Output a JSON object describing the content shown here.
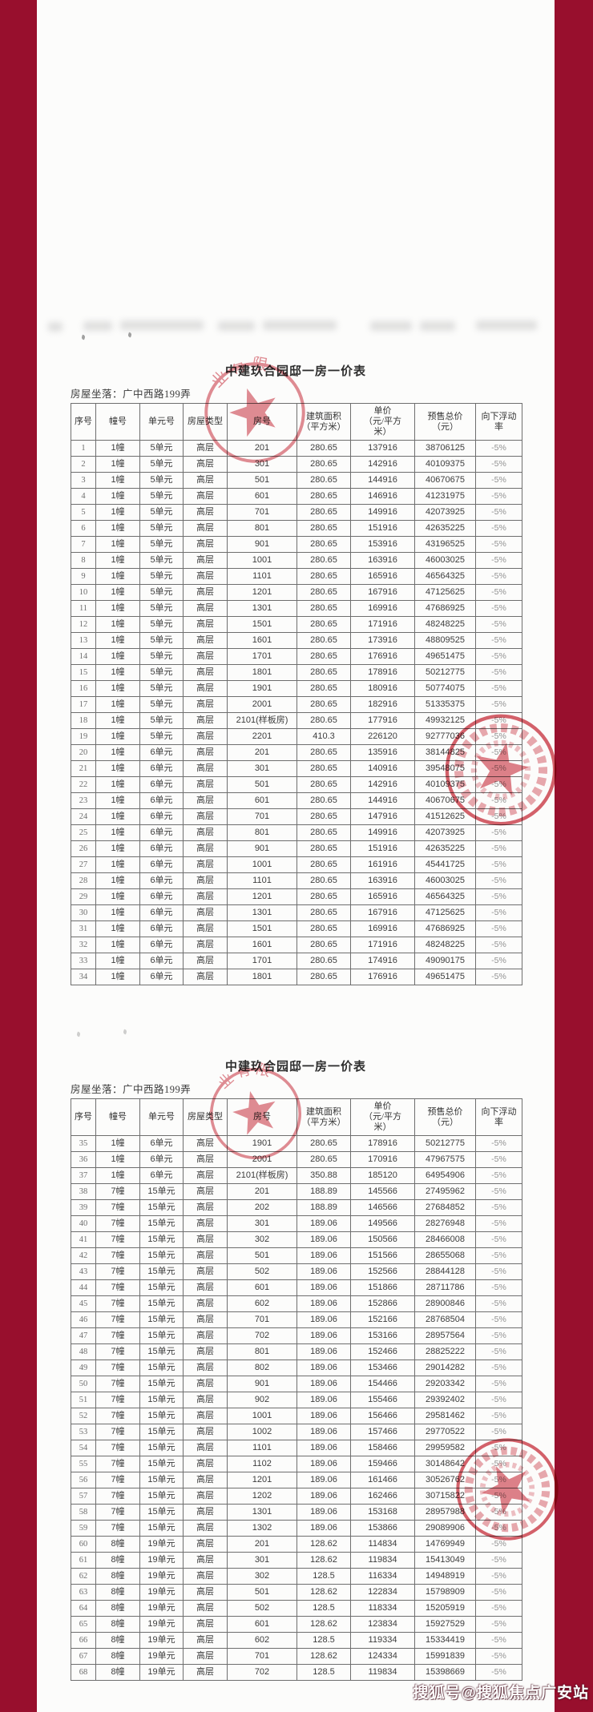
{
  "page": {
    "watermark": "搜狐号@搜狐焦点广安站",
    "colors": {
      "background": "#980f2d",
      "paper": "#fcfcfb",
      "seal_red": "#cf4652"
    }
  },
  "seal": {
    "arc_text": "业有限"
  },
  "table_headers": [
    "序号",
    "幢号",
    "单元号",
    "房屋类型",
    "房号",
    "建筑面积\n（平方米）",
    "单价\n（元/平方\n米）",
    "预售总价\n（元）",
    "向下浮动\n率"
  ],
  "tables": [
    {
      "title": "中建玖合园邸一房一价表",
      "location": "房屋坐落：广中西路199弄",
      "rows": [
        [
          "1",
          "1幢",
          "5单元",
          "高层",
          "201",
          "280.65",
          "137916",
          "38706125",
          "-5%"
        ],
        [
          "2",
          "1幢",
          "5单元",
          "高层",
          "301",
          "280.65",
          "142916",
          "40109375",
          "-5%"
        ],
        [
          "3",
          "1幢",
          "5单元",
          "高层",
          "501",
          "280.65",
          "144916",
          "40670675",
          "-5%"
        ],
        [
          "4",
          "1幢",
          "5单元",
          "高层",
          "601",
          "280.65",
          "146916",
          "41231975",
          "-5%"
        ],
        [
          "5",
          "1幢",
          "5单元",
          "高层",
          "701",
          "280.65",
          "149916",
          "42073925",
          "-5%"
        ],
        [
          "6",
          "1幢",
          "5单元",
          "高层",
          "801",
          "280.65",
          "151916",
          "42635225",
          "-5%"
        ],
        [
          "7",
          "1幢",
          "5单元",
          "高层",
          "901",
          "280.65",
          "153916",
          "43196525",
          "-5%"
        ],
        [
          "8",
          "1幢",
          "5单元",
          "高层",
          "1001",
          "280.65",
          "163916",
          "46003025",
          "-5%"
        ],
        [
          "9",
          "1幢",
          "5单元",
          "高层",
          "1101",
          "280.65",
          "165916",
          "46564325",
          "-5%"
        ],
        [
          "10",
          "1幢",
          "5单元",
          "高层",
          "1201",
          "280.65",
          "167916",
          "47125625",
          "-5%"
        ],
        [
          "11",
          "1幢",
          "5单元",
          "高层",
          "1301",
          "280.65",
          "169916",
          "47686925",
          "-5%"
        ],
        [
          "12",
          "1幢",
          "5单元",
          "高层",
          "1501",
          "280.65",
          "171916",
          "48248225",
          "-5%"
        ],
        [
          "13",
          "1幢",
          "5单元",
          "高层",
          "1601",
          "280.65",
          "173916",
          "48809525",
          "-5%"
        ],
        [
          "14",
          "1幢",
          "5单元",
          "高层",
          "1701",
          "280.65",
          "176916",
          "49651475",
          "-5%"
        ],
        [
          "15",
          "1幢",
          "5单元",
          "高层",
          "1801",
          "280.65",
          "178916",
          "50212775",
          "-5%"
        ],
        [
          "16",
          "1幢",
          "5单元",
          "高层",
          "1901",
          "280.65",
          "180916",
          "50774075",
          "-5%"
        ],
        [
          "17",
          "1幢",
          "5单元",
          "高层",
          "2001",
          "280.65",
          "182916",
          "51335375",
          "-5%"
        ],
        [
          "18",
          "1幢",
          "5单元",
          "高层",
          "2101(样板房)",
          "280.65",
          "177916",
          "49932125",
          "-5%"
        ],
        [
          "19",
          "1幢",
          "5单元",
          "高层",
          "2201",
          "410.3",
          "226120",
          "92777036",
          "-5%"
        ],
        [
          "20",
          "1幢",
          "6单元",
          "高层",
          "201",
          "280.65",
          "135916",
          "38144825",
          "-5%"
        ],
        [
          "21",
          "1幢",
          "6单元",
          "高层",
          "301",
          "280.65",
          "140916",
          "39548075",
          "-5%"
        ],
        [
          "22",
          "1幢",
          "6单元",
          "高层",
          "501",
          "280.65",
          "142916",
          "40109375",
          "-5%"
        ],
        [
          "23",
          "1幢",
          "6单元",
          "高层",
          "601",
          "280.65",
          "144916",
          "40670675",
          "-5%"
        ],
        [
          "24",
          "1幢",
          "6单元",
          "高层",
          "701",
          "280.65",
          "147916",
          "41512625",
          "-5%"
        ],
        [
          "25",
          "1幢",
          "6单元",
          "高层",
          "801",
          "280.65",
          "149916",
          "42073925",
          "-5%"
        ],
        [
          "26",
          "1幢",
          "6单元",
          "高层",
          "901",
          "280.65",
          "151916",
          "42635225",
          "-5%"
        ],
        [
          "27",
          "1幢",
          "6单元",
          "高层",
          "1001",
          "280.65",
          "161916",
          "45441725",
          "-5%"
        ],
        [
          "28",
          "1幢",
          "6单元",
          "高层",
          "1101",
          "280.65",
          "163916",
          "46003025",
          "-5%"
        ],
        [
          "29",
          "1幢",
          "6单元",
          "高层",
          "1201",
          "280.65",
          "165916",
          "46564325",
          "-5%"
        ],
        [
          "30",
          "1幢",
          "6单元",
          "高层",
          "1301",
          "280.65",
          "167916",
          "47125625",
          "-5%"
        ],
        [
          "31",
          "1幢",
          "6单元",
          "高层",
          "1501",
          "280.65",
          "169916",
          "47686925",
          "-5%"
        ],
        [
          "32",
          "1幢",
          "6单元",
          "高层",
          "1601",
          "280.65",
          "171916",
          "48248225",
          "-5%"
        ],
        [
          "33",
          "1幢",
          "6单元",
          "高层",
          "1701",
          "280.65",
          "174916",
          "49090175",
          "-5%"
        ],
        [
          "34",
          "1幢",
          "6单元",
          "高层",
          "1801",
          "280.65",
          "176916",
          "49651475",
          "-5%"
        ]
      ]
    },
    {
      "title": "中建玖合园邸一房一价表",
      "location": "房屋坐落：广中西路199弄",
      "rows": [
        [
          "35",
          "1幢",
          "6单元",
          "高层",
          "1901",
          "280.65",
          "178916",
          "50212775",
          "-5%"
        ],
        [
          "36",
          "1幢",
          "6单元",
          "高层",
          "2001",
          "280.65",
          "170916",
          "47967575",
          "-5%"
        ],
        [
          "37",
          "1幢",
          "6单元",
          "高层",
          "2101(样板房)",
          "350.88",
          "185120",
          "64954906",
          "-5%"
        ],
        [
          "38",
          "7幢",
          "15单元",
          "高层",
          "201",
          "188.89",
          "145566",
          "27495962",
          "-5%"
        ],
        [
          "39",
          "7幢",
          "15单元",
          "高层",
          "202",
          "188.89",
          "146566",
          "27684852",
          "-5%"
        ],
        [
          "40",
          "7幢",
          "15单元",
          "高层",
          "301",
          "189.06",
          "149566",
          "28276948",
          "-5%"
        ],
        [
          "41",
          "7幢",
          "15单元",
          "高层",
          "302",
          "189.06",
          "150566",
          "28466008",
          "-5%"
        ],
        [
          "42",
          "7幢",
          "15单元",
          "高层",
          "501",
          "189.06",
          "151566",
          "28655068",
          "-5%"
        ],
        [
          "43",
          "7幢",
          "15单元",
          "高层",
          "502",
          "189.06",
          "152566",
          "28844128",
          "-5%"
        ],
        [
          "44",
          "7幢",
          "15单元",
          "高层",
          "601",
          "189.06",
          "151866",
          "28711786",
          "-5%"
        ],
        [
          "45",
          "7幢",
          "15单元",
          "高层",
          "602",
          "189.06",
          "152866",
          "28900846",
          "-5%"
        ],
        [
          "46",
          "7幢",
          "15单元",
          "高层",
          "701",
          "189.06",
          "152166",
          "28768504",
          "-5%"
        ],
        [
          "47",
          "7幢",
          "15单元",
          "高层",
          "702",
          "189.06",
          "153166",
          "28957564",
          "-5%"
        ],
        [
          "48",
          "7幢",
          "15单元",
          "高层",
          "801",
          "189.06",
          "152466",
          "28825222",
          "-5%"
        ],
        [
          "49",
          "7幢",
          "15单元",
          "高层",
          "802",
          "189.06",
          "153466",
          "29014282",
          "-5%"
        ],
        [
          "50",
          "7幢",
          "15单元",
          "高层",
          "901",
          "189.06",
          "154466",
          "29203342",
          "-5%"
        ],
        [
          "51",
          "7幢",
          "15单元",
          "高层",
          "902",
          "189.06",
          "155466",
          "29392402",
          "-5%"
        ],
        [
          "52",
          "7幢",
          "15单元",
          "高层",
          "1001",
          "189.06",
          "156466",
          "29581462",
          "-5%"
        ],
        [
          "53",
          "7幢",
          "15单元",
          "高层",
          "1002",
          "189.06",
          "157466",
          "29770522",
          "-5%"
        ],
        [
          "54",
          "7幢",
          "15单元",
          "高层",
          "1101",
          "189.06",
          "158466",
          "29959582",
          "-5%"
        ],
        [
          "55",
          "7幢",
          "15单元",
          "高层",
          "1102",
          "189.06",
          "159466",
          "30148642",
          "-5%"
        ],
        [
          "56",
          "7幢",
          "15单元",
          "高层",
          "1201",
          "189.06",
          "161466",
          "30526762",
          "-5%"
        ],
        [
          "57",
          "7幢",
          "15单元",
          "高层",
          "1202",
          "189.06",
          "162466",
          "30715822",
          "-5%"
        ],
        [
          "58",
          "7幢",
          "15单元",
          "高层",
          "1301",
          "189.06",
          "153168",
          "28957988",
          "-5%"
        ],
        [
          "59",
          "7幢",
          "15单元",
          "高层",
          "1302",
          "189.06",
          "153866",
          "29089906",
          "-5%"
        ],
        [
          "60",
          "8幢",
          "19单元",
          "高层",
          "201",
          "128.62",
          "114834",
          "14769949",
          "-5%"
        ],
        [
          "61",
          "8幢",
          "19单元",
          "高层",
          "301",
          "128.62",
          "119834",
          "15413049",
          "-5%"
        ],
        [
          "62",
          "8幢",
          "19单元",
          "高层",
          "302",
          "128.5",
          "116334",
          "14948919",
          "-5%"
        ],
        [
          "63",
          "8幢",
          "19单元",
          "高层",
          "501",
          "128.62",
          "122834",
          "15798909",
          "-5%"
        ],
        [
          "64",
          "8幢",
          "19单元",
          "高层",
          "502",
          "128.5",
          "118334",
          "15205919",
          "-5%"
        ],
        [
          "65",
          "8幢",
          "19单元",
          "高层",
          "601",
          "128.62",
          "123834",
          "15927529",
          "-5%"
        ],
        [
          "66",
          "8幢",
          "19单元",
          "高层",
          "602",
          "128.5",
          "119334",
          "15334419",
          "-5%"
        ],
        [
          "67",
          "8幢",
          "19单元",
          "高层",
          "701",
          "128.62",
          "124334",
          "15991839",
          "-5%"
        ],
        [
          "68",
          "8幢",
          "19单元",
          "高层",
          "702",
          "128.5",
          "119834",
          "15398669",
          "-5%"
        ]
      ]
    }
  ]
}
